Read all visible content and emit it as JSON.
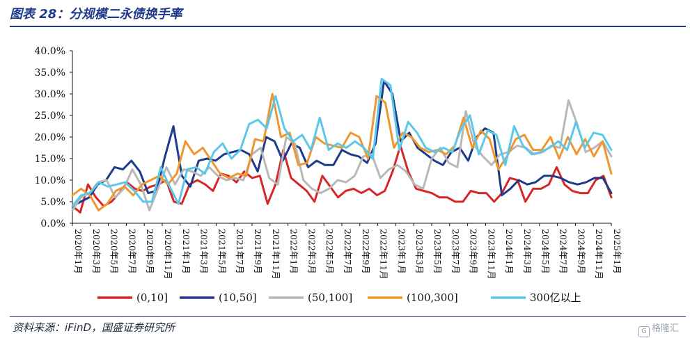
{
  "header": {
    "title": "图表 28：分规模二永债换手率"
  },
  "footer": {
    "source": "资料来源：iFinD，国盛证券研究所",
    "watermark": "格隆汇",
    "watermark_icon": "G"
  },
  "chart_data": {
    "type": "line",
    "ylim": [
      0,
      40
    ],
    "y_ticks": [
      "0.0%",
      "5.0%",
      "10.0%",
      "15.0%",
      "20.0%",
      "25.0%",
      "30.0%",
      "35.0%",
      "40.0%"
    ],
    "x_tick_labels": [
      "2020年1月",
      "2020年3月",
      "2020年5月",
      "2020年7月",
      "2020年9月",
      "2020年11月",
      "2021年1月",
      "2021年3月",
      "2021年5月",
      "2021年7月",
      "2021年9月",
      "2021年11月",
      "2022年1月",
      "2022年3月",
      "2022年5月",
      "2022年7月",
      "2022年9月",
      "2022年11月",
      "2023年1月",
      "2023年3月",
      "2023年5月",
      "2023年7月",
      "2023年9月",
      "2023年11月",
      "2024年1月",
      "2024年3月",
      "2024年5月",
      "2024年7月",
      "2024年9月",
      "2024年11月",
      "2025年1月"
    ],
    "grid": false,
    "legend": "bottom",
    "series": [
      {
        "name": "(0,10]",
        "color": "#d62728",
        "values": [
          4.0,
          2.5,
          9.0,
          6.0,
          4.0,
          5.0,
          7.0,
          9.5,
          8.0,
          7.5,
          8.5,
          9.0,
          10.0,
          5.0,
          4.5,
          9.0,
          10.0,
          9.0,
          7.5,
          11.5,
          11.0,
          9.5,
          12.0,
          10.5,
          11.0,
          4.5,
          9.0,
          17.0,
          10.5,
          9.0,
          7.5,
          5.0,
          11.0,
          8.5,
          6.0,
          7.5,
          8.0,
          7.0,
          8.0,
          6.5,
          7.5,
          12.0,
          18.0,
          12.0,
          8.0,
          7.5,
          7.0,
          6.0,
          6.0,
          5.0,
          5.0,
          7.5,
          7.0,
          7.0,
          5.0,
          7.0,
          10.5,
          10.0,
          5.0,
          8.0,
          8.0,
          9.0,
          13.0,
          9.0,
          7.5,
          7.0,
          7.0,
          10.0,
          11.0,
          6.0
        ]
      },
      {
        "name": "(10,50]",
        "color": "#1f3a8a",
        "values": [
          4.0,
          5.0,
          6.0,
          9.0,
          10.0,
          13.0,
          12.5,
          14.5,
          12.0,
          7.0,
          7.5,
          15.5,
          22.5,
          11.0,
          8.5,
          14.5,
          15.0,
          14.5,
          16.0,
          16.5,
          17.0,
          16.0,
          12.0,
          20.0,
          19.0,
          14.5,
          18.5,
          17.5,
          13.0,
          14.5,
          13.5,
          13.5,
          17.0,
          16.0,
          15.5,
          14.0,
          18.5,
          33.0,
          30.0,
          19.0,
          21.0,
          17.5,
          16.0,
          14.5,
          13.5,
          16.5,
          17.5,
          14.5,
          20.0,
          22.0,
          21.0,
          6.5,
          8.0,
          10.0,
          9.0,
          9.5,
          11.0,
          11.0,
          10.5,
          9.5,
          9.0,
          9.5,
          10.5,
          10.5,
          7.0
        ]
      },
      {
        "name": "(50,100]",
        "color": "#b8b8b8",
        "values": [
          3.0,
          6.0,
          7.0,
          9.5,
          10.0,
          6.0,
          8.0,
          12.5,
          9.0,
          3.0,
          8.0,
          13.0,
          9.0,
          12.5,
          12.0,
          11.0,
          13.0,
          11.0,
          10.0,
          10.5,
          10.0,
          16.0,
          17.5,
          10.5,
          9.0,
          20.0,
          18.5,
          10.0,
          8.0,
          7.0,
          8.0,
          10.0,
          9.5,
          11.0,
          15.5,
          16.0,
          10.5,
          12.5,
          13.5,
          12.0,
          9.0,
          8.0,
          15.0,
          17.5,
          14.0,
          13.0,
          26.0,
          18.0,
          15.5,
          13.5,
          16.0,
          16.5,
          18.0,
          17.5,
          16.0,
          16.5,
          18.0,
          17.5,
          28.5,
          23.0,
          16.5,
          17.5,
          19.0,
          15.5
        ]
      },
      {
        "name": "(100,300]",
        "color": "#f0962e",
        "values": [
          6.5,
          8.0,
          6.5,
          3.0,
          4.5,
          7.5,
          8.5,
          6.5,
          9.0,
          10.0,
          11.0,
          9.0,
          11.5,
          19.0,
          16.0,
          17.5,
          14.5,
          11.5,
          10.5,
          11.5,
          11.0,
          19.5,
          19.0,
          30.0,
          20.0,
          21.0,
          13.5,
          14.0,
          20.0,
          18.5,
          18.0,
          17.5,
          21.0,
          20.0,
          15.0,
          29.5,
          28.0,
          17.5,
          21.0,
          20.0,
          17.5,
          16.5,
          17.0,
          16.0,
          18.0,
          24.5,
          17.5,
          21.5,
          19.5,
          12.5,
          15.5,
          19.5,
          20.5,
          17.0,
          17.0,
          20.0,
          15.0,
          20.0,
          16.0,
          19.5,
          15.5,
          19.0,
          11.5
        ]
      },
      {
        "name": "300亿以上",
        "color": "#5bc8ea",
        "values": [
          4.0,
          6.5,
          7.0,
          9.5,
          8.5,
          9.0,
          9.5,
          7.5,
          5.0,
          5.0,
          13.0,
          8.5,
          4.5,
          12.5,
          13.0,
          11.5,
          16.5,
          18.5,
          15.0,
          17.0,
          23.0,
          24.0,
          22.0,
          29.5,
          22.0,
          19.0,
          20.5,
          17.0,
          24.5,
          17.0,
          18.5,
          17.5,
          19.0,
          17.5,
          15.0,
          33.5,
          32.0,
          17.0,
          23.5,
          21.0,
          17.5,
          16.5,
          17.5,
          16.5,
          22.0,
          25.0,
          16.0,
          21.5,
          20.5,
          13.5,
          22.5,
          18.0,
          16.0,
          16.5,
          17.5,
          19.0,
          17.0,
          23.5,
          17.5,
          21.0,
          20.5,
          17.0
        ]
      }
    ]
  }
}
